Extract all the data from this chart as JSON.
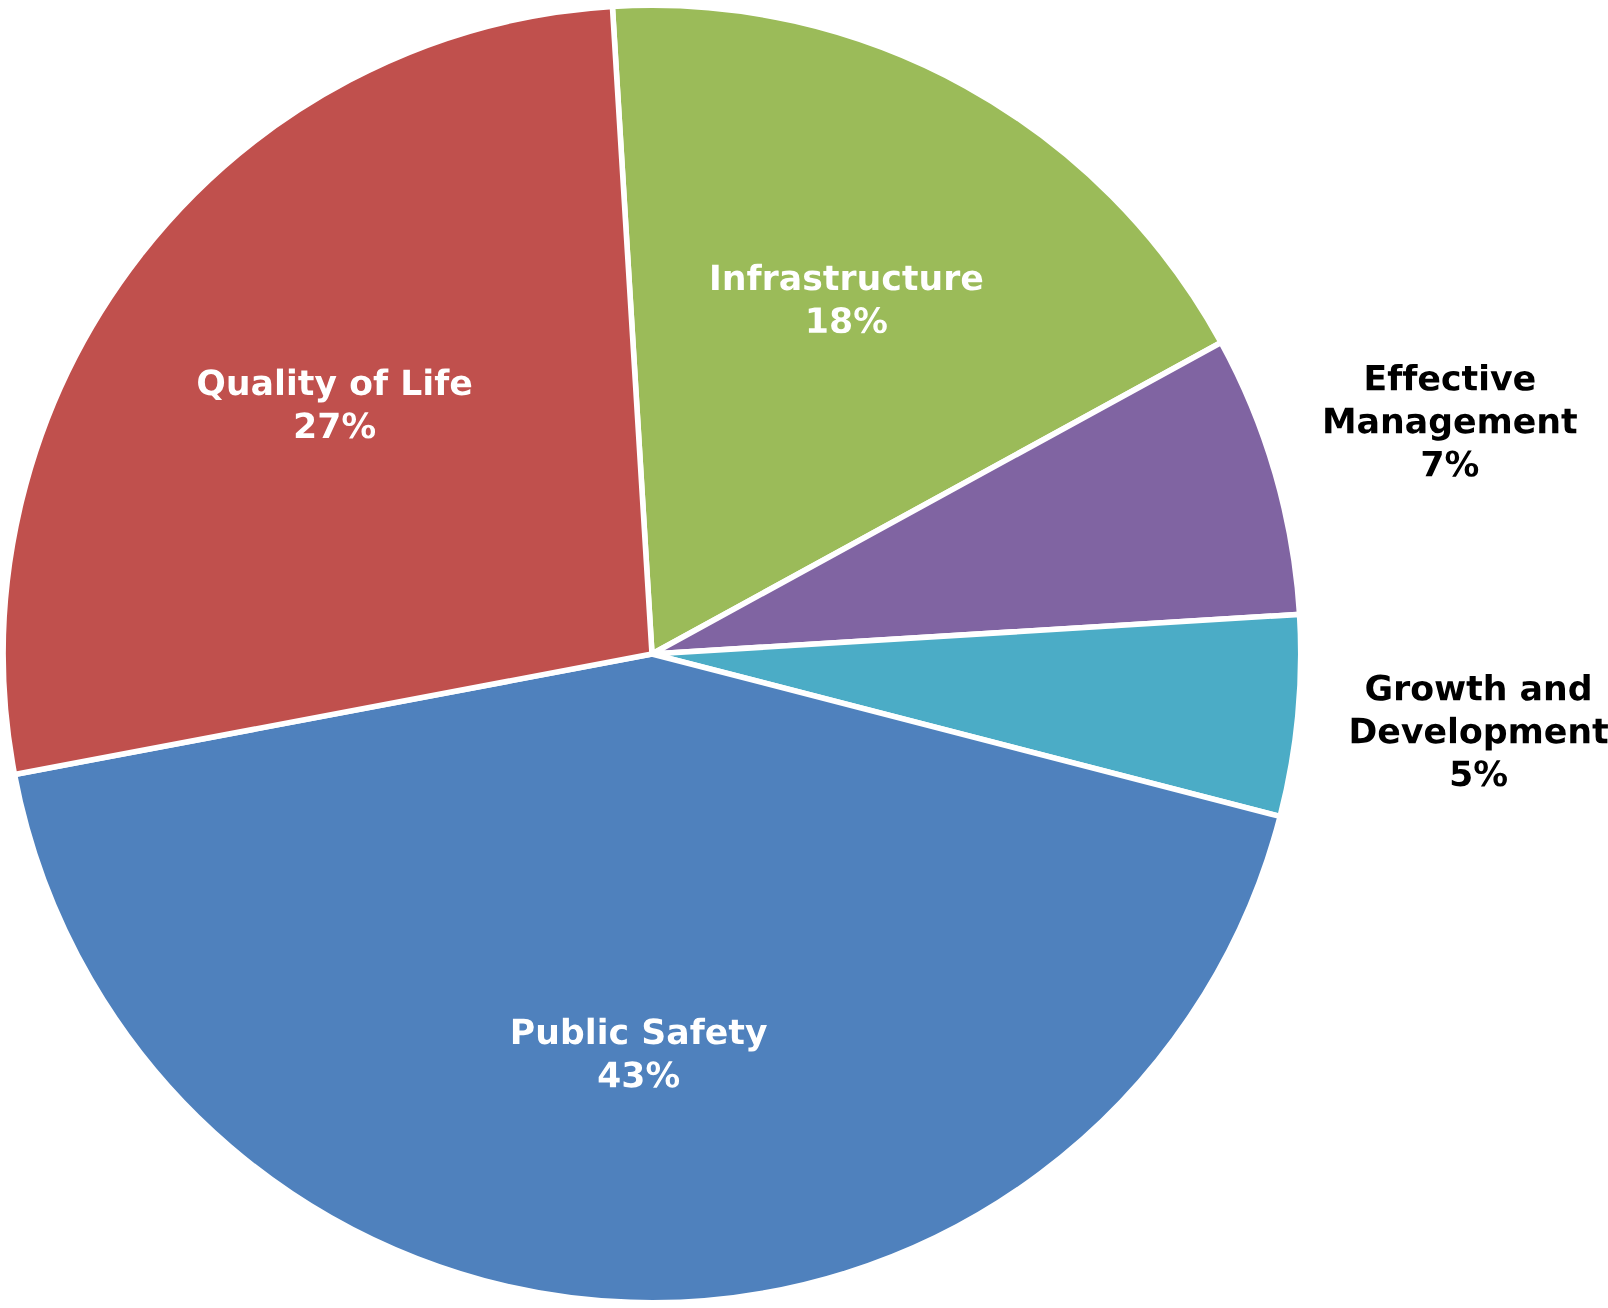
{
  "chart_data": {
    "type": "pie",
    "categories": [
      "Infrastructure",
      "Effective\nManagement",
      "Growth and\nDevelopment",
      "Public Safety",
      "Quality of Life"
    ],
    "values": [
      18,
      7,
      5,
      43,
      27
    ],
    "colors": [
      "#9bbb59",
      "#8064a2",
      "#4bacc6",
      "#4f81bd",
      "#c0504d"
    ],
    "value_labels": [
      "18%",
      "7%",
      "5%",
      "43%",
      "27%"
    ]
  }
}
